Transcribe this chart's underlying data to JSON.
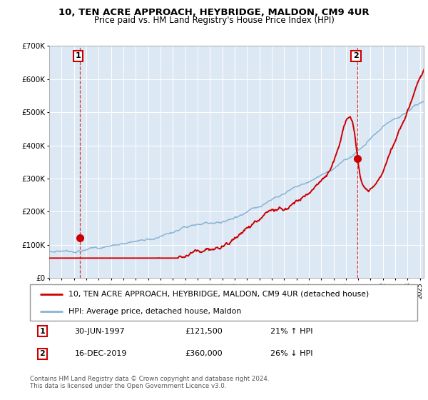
{
  "title": "10, TEN ACRE APPROACH, HEYBRIDGE, MALDON, CM9 4UR",
  "subtitle": "Price paid vs. HM Land Registry's House Price Index (HPI)",
  "ylim": [
    0,
    700000
  ],
  "xlim_start": 1995.0,
  "xlim_end": 2025.3,
  "sale1_date": 1997.5,
  "sale1_price": 121500,
  "sale2_date": 2019.96,
  "sale2_price": 360000,
  "legend_line1": "10, TEN ACRE APPROACH, HEYBRIDGE, MALDON, CM9 4UR (detached house)",
  "legend_line2": "HPI: Average price, detached house, Maldon",
  "footnote1": "Contains HM Land Registry data © Crown copyright and database right 2024.",
  "footnote2": "This data is licensed under the Open Government Licence v3.0.",
  "hpi_color": "#8ab4d4",
  "price_color": "#cc0000",
  "plot_bg": "#dde8f5",
  "grid_color": "#ffffff"
}
